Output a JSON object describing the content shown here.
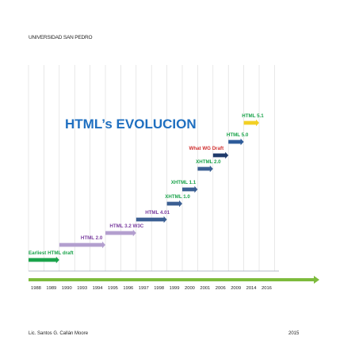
{
  "header": {
    "text": "UNIVERSIDAD SAN PEDRO"
  },
  "title": "HTML’s  EVOLUCION",
  "years": [
    "1988",
    "1989",
    "1990",
    "1993",
    "1994",
    "1995",
    "1996",
    "1997",
    "1998",
    "1999",
    "2000",
    "2001",
    "2006",
    "2009",
    "2014",
    "2016"
  ],
  "versions": [
    {
      "label": "Earliest HTML draft",
      "start": "1988",
      "end": "1990",
      "color": "#1aa34a"
    },
    {
      "label": "HTML  2.0",
      "start": "1990",
      "end": "1995",
      "color": "#b39fcf"
    },
    {
      "label": "HTML  3.2 W3C",
      "start": "1995",
      "end": "1997",
      "color": "#b39fcf"
    },
    {
      "label": "HTML  4.01",
      "start": "1997",
      "end": "1999",
      "color": "#3b5f93"
    },
    {
      "label": "XHTML  1.0",
      "start": "1999",
      "end": "2000",
      "color": "#3b5f93"
    },
    {
      "label": "XHTML  1.1",
      "start": "2000",
      "end": "2001",
      "color": "#3b5f93"
    },
    {
      "label": "XHTML  2.0",
      "start": "2001",
      "end": "2006",
      "color": "#3b5f93"
    },
    {
      "label": "What WG Draft",
      "start": "2006",
      "end": "2009",
      "color": "#1f3a6b"
    },
    {
      "label": "HTML  5.0",
      "start": "2009",
      "end": "2014",
      "color": "#2e5c9a"
    },
    {
      "label": "HTML  5.1",
      "start": "2014",
      "end": "2016",
      "color": "#f2d024"
    }
  ],
  "colors": {
    "title": "#1f6fc0",
    "green_label": "#1aa34a",
    "purple_label": "#7b3fa0",
    "red_label": "#d03030",
    "axis_arrow": "#7dbb3c",
    "grid": "#d9d9d9"
  },
  "footer": {
    "author": "Lic. Santos G. Callán Moore",
    "year": "2015"
  }
}
